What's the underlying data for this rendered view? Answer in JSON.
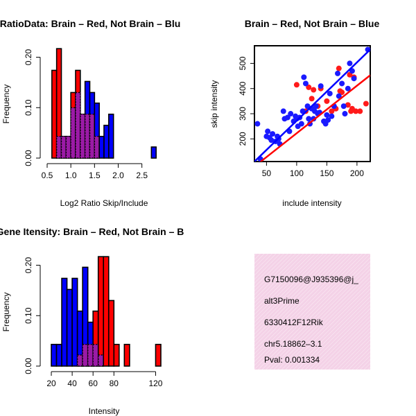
{
  "colors": {
    "red": "#ff0000",
    "blue": "#0000ff",
    "overlap": "#9b1aa6",
    "redPoint": "#ff1a1a",
    "bluePoint": "#1a1aff",
    "infoBg": "#f7dced",
    "pval": "#8b0000"
  },
  "chart_data": [
    {
      "type": "bar",
      "id": "ratio",
      "title": "RatioData: Brain – Red, Not Brain – Blu",
      "xlabel": "Log2 Ratio Skip/Include",
      "ylabel": "Frequency",
      "xlim": [
        0.5,
        2.9
      ],
      "ylim": [
        0,
        0.22
      ],
      "xticks": [
        0.5,
        1.0,
        1.5,
        2.0,
        2.5
      ],
      "xtick_labels": [
        "0.5",
        "1.0",
        "1.5",
        "2.0",
        "2.5"
      ],
      "yticks": [
        0.0,
        0.1,
        0.2
      ],
      "ytick_labels": [
        "0.00",
        "0.10",
        "0.20"
      ],
      "bin_start": 0.6,
      "bin_width": 0.1,
      "series": [
        {
          "name": "Brain",
          "color": "red",
          "values": [
            0.174,
            0.217,
            0.043,
            0.043,
            0.13,
            0.174,
            0.087,
            0.087,
            0.087,
            0.043,
            0.0,
            0.0,
            0.0,
            0.0,
            0.0,
            0.0,
            0.0,
            0.0,
            0.0,
            0.0,
            0.0,
            0.0
          ]
        },
        {
          "name": "Not Brain",
          "color": "blue",
          "values": [
            0.0,
            0.043,
            0.043,
            0.043,
            0.1,
            0.13,
            0.087,
            0.152,
            0.13,
            0.109,
            0.043,
            0.065,
            0.087,
            0.0,
            0.0,
            0.0,
            0.0,
            0.0,
            0.0,
            0.0,
            0.0,
            0.022
          ]
        }
      ]
    },
    {
      "type": "scatter",
      "id": "scatter",
      "title": "Brain – Red, Not Brain – Blue",
      "xlabel": "include intensity",
      "ylabel": "skip intensity",
      "xlim": [
        30,
        222
      ],
      "ylim": [
        110,
        570
      ],
      "xticks": [
        50,
        100,
        150,
        200
      ],
      "xtick_labels": [
        "50",
        "100",
        "150",
        "200"
      ],
      "yticks": [
        200,
        300,
        400,
        500
      ],
      "ytick_labels": [
        "200",
        "300",
        "400",
        "500"
      ],
      "series": [
        {
          "name": "Brain",
          "color": "red",
          "points": [
            [
              100,
              415
            ],
            [
              115,
              310
            ],
            [
              120,
              405
            ],
            [
              125,
              360
            ],
            [
              128,
              395
            ],
            [
              135,
              330
            ],
            [
              140,
              400
            ],
            [
              150,
              350
            ],
            [
              158,
              310
            ],
            [
              165,
              320
            ],
            [
              170,
              480
            ],
            [
              172,
              390
            ],
            [
              175,
              385
            ],
            [
              185,
              335
            ],
            [
              188,
              455
            ],
            [
              190,
              310
            ],
            [
              192,
              320
            ],
            [
              195,
              445
            ],
            [
              198,
              310
            ],
            [
              205,
              310
            ],
            [
              215,
              340
            ]
          ],
          "fit": [
            [
              30,
              90
            ],
            [
              222,
              453
            ]
          ]
        },
        {
          "name": "Not Brain",
          "color": "blue",
          "points": [
            [
              35,
              260
            ],
            [
              40,
              120
            ],
            [
              50,
              210
            ],
            [
              52,
              230
            ],
            [
              55,
              205
            ],
            [
              58,
              195
            ],
            [
              60,
              220
            ],
            [
              65,
              190
            ],
            [
              68,
              210
            ],
            [
              70,
              200
            ],
            [
              72,
              180
            ],
            [
              78,
              310
            ],
            [
              80,
              280
            ],
            [
              85,
              285
            ],
            [
              88,
              230
            ],
            [
              90,
              300
            ],
            [
              95,
              270
            ],
            [
              98,
              290
            ],
            [
              100,
              280
            ],
            [
              102,
              250
            ],
            [
              105,
              285
            ],
            [
              108,
              260
            ],
            [
              110,
              310
            ],
            [
              112,
              445
            ],
            [
              115,
              420
            ],
            [
              118,
              330
            ],
            [
              120,
              280
            ],
            [
              122,
              260
            ],
            [
              125,
              320
            ],
            [
              128,
              280
            ],
            [
              130,
              310
            ],
            [
              132,
              330
            ],
            [
              135,
              300
            ],
            [
              138,
              305
            ],
            [
              140,
              410
            ],
            [
              145,
              270
            ],
            [
              148,
              260
            ],
            [
              150,
              295
            ],
            [
              152,
              275
            ],
            [
              155,
              380
            ],
            [
              158,
              290
            ],
            [
              162,
              330
            ],
            [
              168,
              460
            ],
            [
              170,
              370
            ],
            [
              175,
              420
            ],
            [
              178,
              330
            ],
            [
              180,
              300
            ],
            [
              185,
              400
            ],
            [
              188,
              500
            ],
            [
              192,
              470
            ],
            [
              195,
              440
            ],
            [
              218,
              555
            ]
          ],
          "fit": [
            [
              30,
              110
            ],
            [
              222,
              555
            ]
          ]
        }
      ]
    },
    {
      "type": "bar",
      "id": "intensity",
      "title": "Gene Itensity: Brain – Red, Not Brain – B",
      "xlabel": "Intensity",
      "ylabel": "Frequency",
      "xlim": [
        16,
        125
      ],
      "ylim": [
        0,
        0.22
      ],
      "xticks": [
        20,
        40,
        60,
        80,
        120
      ],
      "xtick_labels": [
        "20",
        "40",
        "60",
        "80",
        "120"
      ],
      "yticks": [
        0.0,
        0.1,
        0.2
      ],
      "ytick_labels": [
        "0.00",
        "0.10",
        "0.20"
      ],
      "bin_start": 20,
      "bin_width": 5,
      "series": [
        {
          "name": "Brain",
          "color": "red",
          "values": [
            0.0,
            0.0,
            0.0,
            0.0,
            0.0,
            0.022,
            0.043,
            0.043,
            0.109,
            0.217,
            0.217,
            0.13,
            0.043,
            0.0,
            0.043,
            0.0,
            0.0,
            0.0,
            0.0,
            0.0,
            0.043
          ]
        },
        {
          "name": "Not Brain",
          "color": "blue",
          "values": [
            0.043,
            0.043,
            0.174,
            0.152,
            0.174,
            0.109,
            0.196,
            0.087,
            0.043,
            0.022,
            0.0,
            0.0,
            0.0,
            0.0,
            0.0,
            0.0,
            0.0,
            0.0,
            0.0,
            0.0,
            0.0
          ]
        }
      ]
    }
  ],
  "info": {
    "lines": [
      "G7150096@J935396@j_",
      "alt3Prime",
      "6330412F12Rik",
      "chr5.18862–3.1"
    ],
    "pval": "Pval: 0.001334"
  }
}
